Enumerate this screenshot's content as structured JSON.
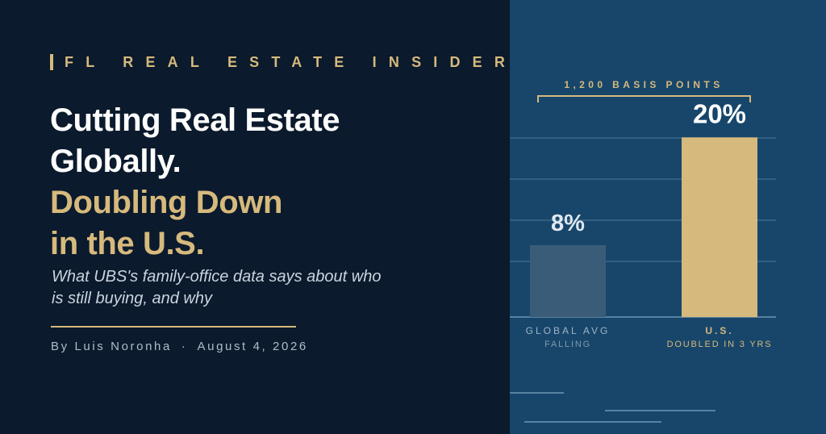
{
  "brand": {
    "name": "FL REAL ESTATE INSIDER"
  },
  "headline": {
    "line1": "Cutting Real Estate",
    "line2": "Globally.",
    "line3": "Doubling Down",
    "line4": "in the U.S."
  },
  "subtitle": "What UBS's family-office data says about who is still buying, and why",
  "byline": {
    "author": "By Luis Noronha",
    "separator": "·",
    "date": "August 4, 2026"
  },
  "colors": {
    "background": "#0b1a2c",
    "panel": "#17466a",
    "accent": "#d6b97d",
    "muted_bar": "#3a5c78"
  },
  "chart_data": {
    "type": "bar",
    "categories": [
      "GLOBAL AVG",
      "U.S."
    ],
    "values": [
      8,
      20
    ],
    "value_labels": [
      "8%",
      "20%"
    ],
    "category_sublabels": [
      "FALLING",
      "DOUBLED IN 3 YRS"
    ],
    "bar_colors": [
      "#3a5c78",
      "#d6b97d"
    ],
    "annotation": "1,200 BASIS POINTS",
    "ylim": [
      0,
      22
    ],
    "grid": true
  }
}
